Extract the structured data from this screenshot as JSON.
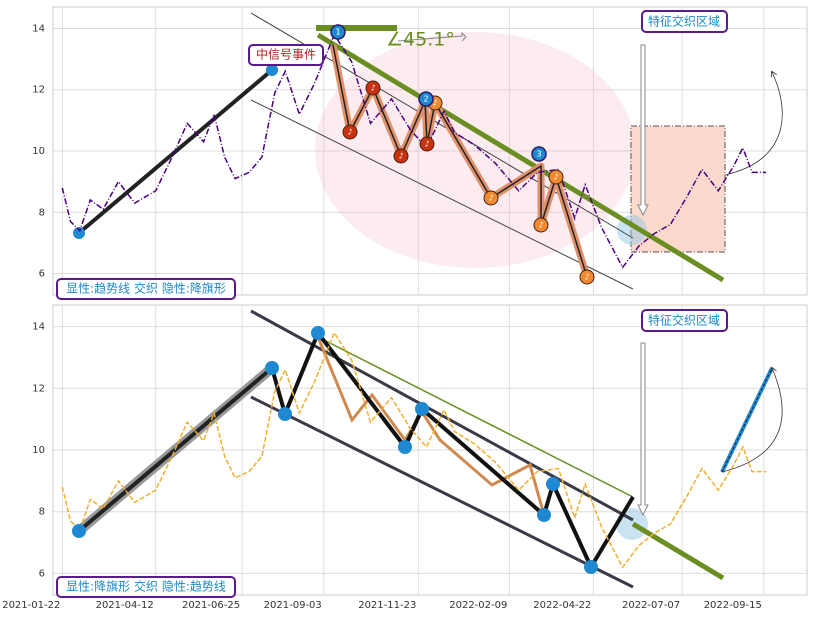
{
  "chart_data": [
    {
      "type": "line",
      "x": [
        "2021-01-22",
        "2021-01-29",
        "2021-02-06",
        "2021-02-15",
        "2021-02-26",
        "2021-03-11",
        "2021-03-25",
        "2021-04-12",
        "2021-04-26",
        "2021-05-09",
        "2021-05-23",
        "2021-06-01",
        "2021-06-10",
        "2021-06-19",
        "2021-07-01",
        "2021-07-12",
        "2021-07-23",
        "2021-08-01",
        "2021-08-13",
        "2021-08-26",
        "2021-09-12",
        "2021-09-27",
        "2021-10-13",
        "2021-10-31",
        "2021-11-16",
        "2021-11-30",
        "2021-12-15",
        "2021-12-24",
        "2022-01-10",
        "2022-01-28",
        "2022-02-17",
        "2022-03-05",
        "2022-03-23",
        "2022-04-06",
        "2022-04-15",
        "2022-04-29",
        "2022-05-17",
        "2022-05-31",
        "2022-06-13",
        "2022-06-27",
        "2022-07-11",
        "2022-07-24",
        "2022-08-07",
        "2022-08-20",
        "2022-08-28",
        "2022-09-05",
        "2022-09-17"
      ],
      "series": [
        {
          "color": "#4b0082",
          "values": [
            8.8,
            7.7,
            7.4,
            8.4,
            8.1,
            9.0,
            8.3,
            8.7,
            9.8,
            10.9,
            10.3,
            11.2,
            9.8,
            9.1,
            9.3,
            9.8,
            11.9,
            12.6,
            11.2,
            12.2,
            13.8,
            12.9,
            10.9,
            11.7,
            10.7,
            10.1,
            11.3,
            10.6,
            10.2,
            9.6,
            8.7,
            9.3,
            9.4,
            7.8,
            8.9,
            7.5,
            6.2,
            6.9,
            7.3,
            7.6,
            8.5,
            9.4,
            8.7,
            9.5,
            10.1,
            9.3,
            9.3
          ]
        }
      ],
      "xlim": [
        "2021-01-14",
        "2022-10-22"
      ],
      "ylim": [
        5.3,
        14.7
      ],
      "yticks": [
        6,
        8,
        10,
        12,
        14
      ],
      "grid": true,
      "annotations": {
        "event": "中信号事件",
        "angle": "∠45.1°",
        "zone": "特征交织区域",
        "pattern": "显性:趋势线 交织 隐性:降旗形",
        "markers": [
          "1",
          "2",
          "3"
        ],
        "note": "♪"
      }
    },
    {
      "type": "line",
      "x": [
        "2021-01-22",
        "2021-01-29",
        "2021-02-06",
        "2021-02-15",
        "2021-02-26",
        "2021-03-11",
        "2021-03-25",
        "2021-04-12",
        "2021-04-26",
        "2021-05-09",
        "2021-05-23",
        "2021-06-01",
        "2021-06-10",
        "2021-06-19",
        "2021-07-01",
        "2021-07-12",
        "2021-07-23",
        "2021-08-01",
        "2021-08-13",
        "2021-08-26",
        "2021-09-12",
        "2021-09-27",
        "2021-10-13",
        "2021-10-31",
        "2021-11-16",
        "2021-11-30",
        "2021-12-15",
        "2021-12-24",
        "2022-01-10",
        "2022-01-28",
        "2022-02-17",
        "2022-03-05",
        "2022-03-23",
        "2022-04-06",
        "2022-04-15",
        "2022-04-29",
        "2022-05-17",
        "2022-05-31",
        "2022-06-13",
        "2022-06-27",
        "2022-07-11",
        "2022-07-24",
        "2022-08-07",
        "2022-08-20",
        "2022-08-28",
        "2022-09-05",
        "2022-09-17"
      ],
      "series": [
        {
          "color": "#f0b030",
          "values": [
            8.8,
            7.7,
            7.4,
            8.4,
            8.1,
            9.0,
            8.3,
            8.7,
            9.8,
            10.9,
            10.3,
            11.2,
            9.8,
            9.1,
            9.3,
            9.8,
            11.9,
            12.6,
            11.2,
            12.2,
            13.8,
            12.9,
            10.9,
            11.7,
            10.7,
            10.1,
            11.3,
            10.6,
            10.2,
            9.6,
            8.7,
            9.3,
            9.4,
            7.8,
            8.9,
            7.5,
            6.2,
            6.9,
            7.3,
            7.6,
            8.5,
            9.4,
            8.7,
            9.5,
            10.1,
            9.3,
            9.3
          ]
        }
      ],
      "xlim": [
        "2021-01-14",
        "2022-10-22"
      ],
      "xticks": [
        "2021-01-22",
        "2021-04-12",
        "2021-06-25",
        "2021-09-03",
        "2021-11-23",
        "2022-02-09",
        "2022-04-22",
        "2022-07-07",
        "2022-09-15"
      ],
      "ylim": [
        5.3,
        14.7
      ],
      "yticks": [
        6,
        8,
        10,
        12,
        14
      ],
      "grid": true,
      "annotations": {
        "zone": "特征交织区域",
        "pattern": "显性:降旗形 交织 隐性:趋势线"
      }
    }
  ]
}
